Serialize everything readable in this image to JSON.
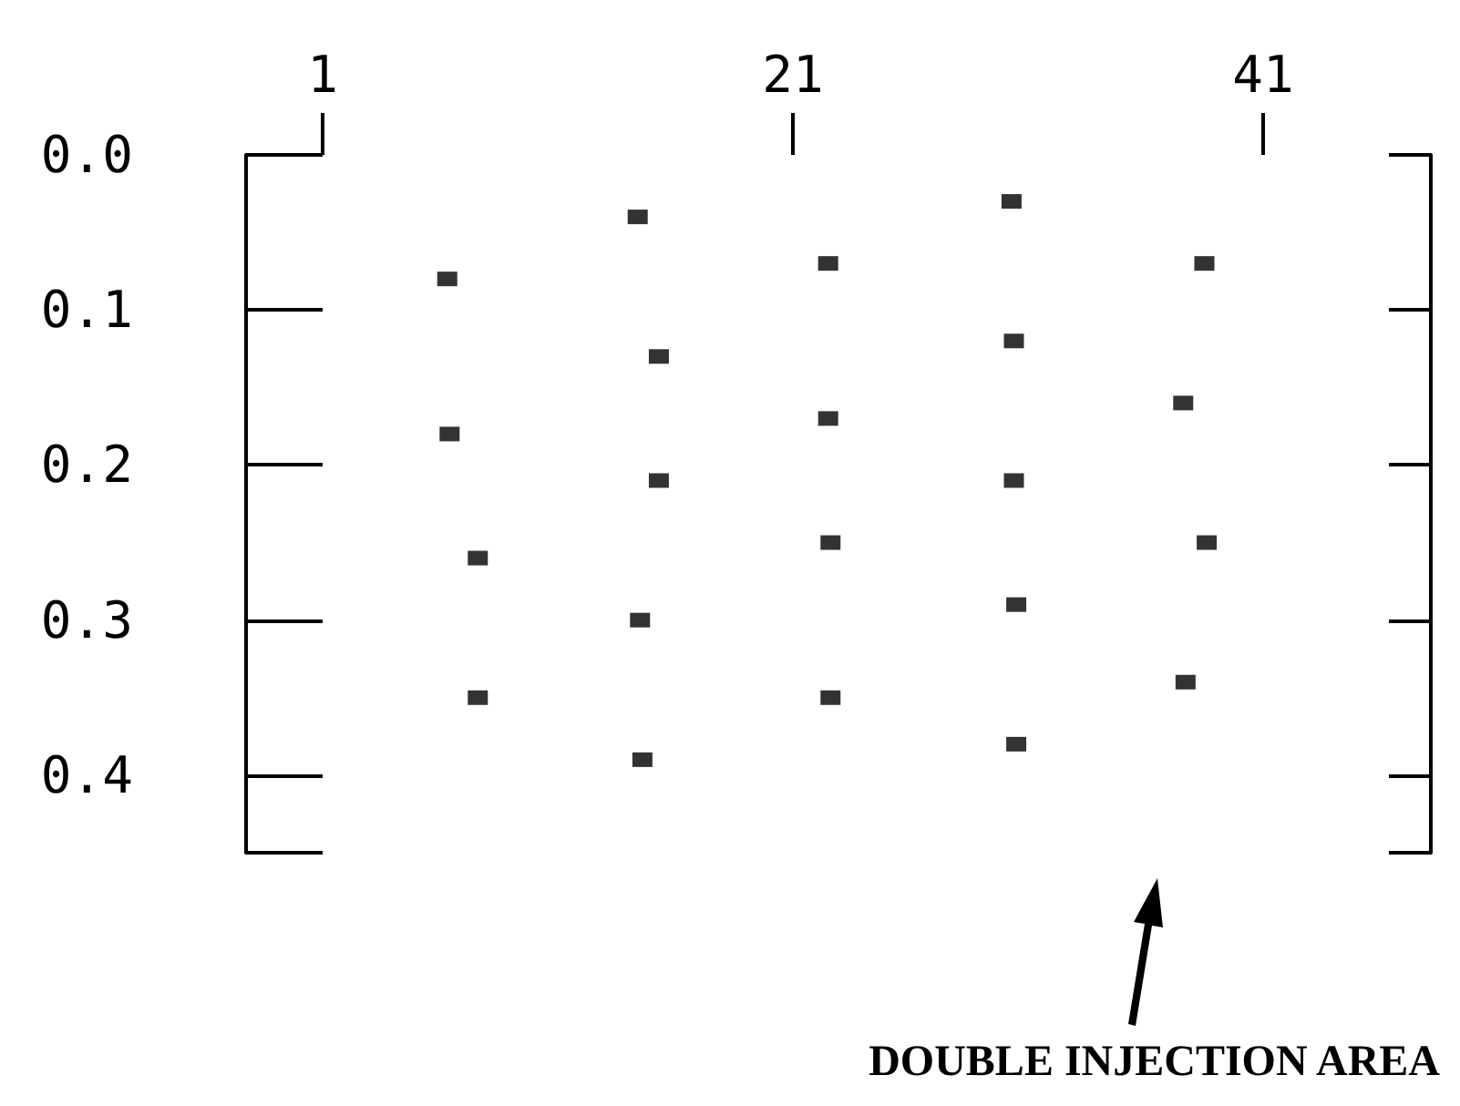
{
  "chart_data": {
    "type": "scatter",
    "x": [
      6.3,
      6.4,
      7.6,
      7.6,
      14.4,
      15.3,
      15.3,
      14.5,
      14.6,
      22.5,
      22.5,
      22.6,
      22.6,
      30.3,
      30.4,
      30.4,
      30.5,
      30.5,
      38.5,
      37.6,
      38.6,
      37.7
    ],
    "values": [
      0.08,
      0.18,
      0.26,
      0.35,
      0.04,
      0.13,
      0.21,
      0.3,
      0.39,
      0.07,
      0.17,
      0.25,
      0.35,
      0.03,
      0.12,
      0.21,
      0.29,
      0.38,
      0.07,
      0.16,
      0.25,
      0.34
    ],
    "color": "#000000",
    "marker": "square",
    "xlim": [
      1,
      41
    ],
    "xticks": [
      1,
      21,
      41
    ],
    "ylim": [
      0.45,
      0
    ],
    "yticks": [
      {
        "value": 0,
        "label": "0.0"
      },
      0.1,
      0.2,
      0.3,
      0.4
    ],
    "annotations": [
      "DOUBLE INJECTION AREA"
    ]
  }
}
